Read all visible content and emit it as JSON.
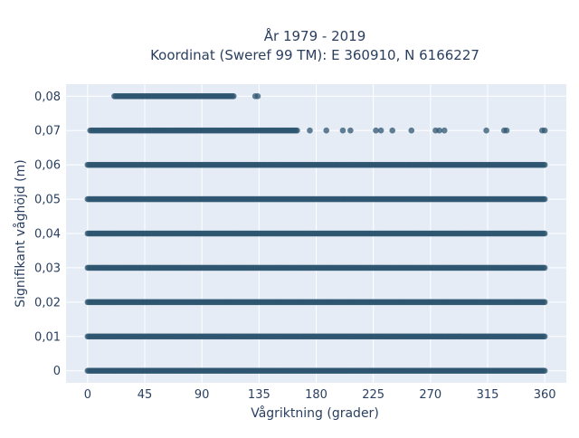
{
  "chart_data": {
    "type": "scatter",
    "title": "År 1979 - 2019",
    "subtitle": "Koordinat (Sweref 99 TM): E 360910, N 6166227",
    "xlabel": "Vågriktning (grader)",
    "ylabel": "Signifikant våghöjd (m)",
    "xlim": [
      -17,
      377
    ],
    "ylim": [
      -0.0035,
      0.0835
    ],
    "x_ticks": [
      0,
      45,
      90,
      135,
      180,
      225,
      270,
      315,
      360
    ],
    "y_ticks": [
      0,
      0.01,
      0.02,
      0.03,
      0.04,
      0.05,
      0.06,
      0.07,
      0.08
    ],
    "y_tick_labels": [
      "0",
      "0,01",
      "0,02",
      "0,03",
      "0,04",
      "0,05",
      "0,06",
      "0,07",
      "0,08"
    ],
    "grid": true,
    "marker_color": "#2f5570",
    "plot_bg": "#e5ecf6",
    "series": [
      {
        "levels": [
          {
            "y": 0,
            "segments": [
              [
                0,
                360
              ]
            ]
          },
          {
            "y": 0.01,
            "segments": [
              [
                0,
                360
              ]
            ]
          },
          {
            "y": 0.02,
            "segments": [
              [
                0,
                360
              ]
            ]
          },
          {
            "y": 0.03,
            "segments": [
              [
                0,
                360
              ]
            ]
          },
          {
            "y": 0.04,
            "segments": [
              [
                0,
                360
              ]
            ]
          },
          {
            "y": 0.05,
            "segments": [
              [
                0,
                360
              ]
            ]
          },
          {
            "y": 0.06,
            "segments": [
              [
                0,
                360
              ]
            ]
          },
          {
            "y": 0.07,
            "segments": [
              [
                2,
                165
              ]
            ],
            "points": [
              175,
              188,
              201,
              207,
              227,
              231,
              240,
              255,
              274,
              277,
              281,
              314,
              328,
              330,
              358,
              360
            ]
          },
          {
            "y": 0.08,
            "segments": [
              [
                21,
                115
              ]
            ],
            "points": [
              132,
              134
            ]
          }
        ]
      }
    ]
  }
}
